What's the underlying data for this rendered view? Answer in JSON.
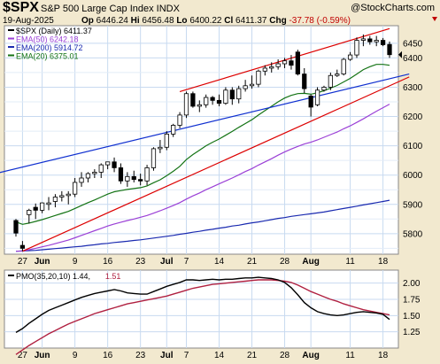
{
  "header": {
    "symbol": "$SPX",
    "name": "S&P 500 Large Cap Index  INDX",
    "brand": "@StockCharts.com",
    "date": "19-Aug-2025",
    "open_label": "Op",
    "open": "6446.24",
    "high_label": "Hi",
    "high": "6456.48",
    "low_label": "Lo",
    "low": "6400.22",
    "close_label": "Cl",
    "close": "6411.37",
    "chg_label": "Chg",
    "chg": "-37.78 (-0.59%)"
  },
  "colors": {
    "background": "#f2e9cf",
    "plot": "#ffffff",
    "grid": "#c8daf0",
    "up": "#000000",
    "down": "#000000",
    "ema50": "#9b40d6",
    "ema200": "#1a2ab0",
    "ema20": "#147314",
    "channel": "#dd0000",
    "trendline": "#1030d0",
    "pmo": "#000000",
    "pmo_signal": "#b02040"
  },
  "chart_data": [
    {
      "type": "candlestick",
      "title": "$SPX (Daily)",
      "y_axis": {
        "ylim": [
          5730,
          6510
        ],
        "ticks": [
          5800,
          5900,
          6000,
          6100,
          6200,
          6300,
          6400,
          6450
        ]
      },
      "x_axis": {
        "ticks": [
          "27",
          "Jun",
          "9",
          "16",
          "23",
          "Jul",
          "7",
          "14",
          "21",
          "28",
          "Aug",
          "11",
          "18"
        ]
      },
      "legend": [
        {
          "label": "$SPX (Daily) 6411.37",
          "color": "#000000"
        },
        {
          "label": "EMA(50) 6242.18",
          "color": "#9b40d6"
        },
        {
          "label": "EMA(200) 5914.72",
          "color": "#1a2ab0"
        },
        {
          "label": "EMA(20) 6375.01",
          "color": "#147314"
        }
      ],
      "candles": [
        {
          "o": 5845,
          "h": 5850,
          "l": 5790,
          "c": 5802
        },
        {
          "o": 5760,
          "h": 5775,
          "l": 5740,
          "c": 5750
        },
        {
          "o": 5865,
          "h": 5885,
          "l": 5835,
          "c": 5880
        },
        {
          "o": 5890,
          "h": 5903,
          "l": 5850,
          "c": 5880
        },
        {
          "o": 5880,
          "h": 5907,
          "l": 5870,
          "c": 5905
        },
        {
          "o": 5900,
          "h": 5925,
          "l": 5880,
          "c": 5905
        },
        {
          "o": 5910,
          "h": 5935,
          "l": 5890,
          "c": 5925
        },
        {
          "o": 5925,
          "h": 5945,
          "l": 5910,
          "c": 5930
        },
        {
          "o": 5930,
          "h": 5945,
          "l": 5900,
          "c": 5935
        },
        {
          "o": 5935,
          "h": 5990,
          "l": 5925,
          "c": 5975
        },
        {
          "o": 5975,
          "h": 6010,
          "l": 5960,
          "c": 5990
        },
        {
          "o": 5990,
          "h": 6010,
          "l": 5975,
          "c": 6005
        },
        {
          "o": 6005,
          "h": 6020,
          "l": 5990,
          "c": 6010
        },
        {
          "o": 6010,
          "h": 6040,
          "l": 5990,
          "c": 6035
        },
        {
          "o": 6035,
          "h": 6045,
          "l": 6020,
          "c": 6045
        },
        {
          "o": 6045,
          "h": 6060,
          "l": 6010,
          "c": 6025
        },
        {
          "o": 6025,
          "h": 6040,
          "l": 5970,
          "c": 5980
        },
        {
          "o": 5980,
          "h": 6010,
          "l": 5960,
          "c": 5995
        },
        {
          "o": 5995,
          "h": 6015,
          "l": 5975,
          "c": 5985
        },
        {
          "o": 5985,
          "h": 6005,
          "l": 5965,
          "c": 5980
        },
        {
          "o": 5980,
          "h": 6035,
          "l": 5965,
          "c": 6025
        },
        {
          "o": 6025,
          "h": 6095,
          "l": 6015,
          "c": 6090
        },
        {
          "o": 6090,
          "h": 6120,
          "l": 6075,
          "c": 6095
        },
        {
          "o": 6095,
          "h": 6150,
          "l": 6085,
          "c": 6140
        },
        {
          "o": 6140,
          "h": 6175,
          "l": 6130,
          "c": 6170
        },
        {
          "o": 6170,
          "h": 6215,
          "l": 6160,
          "c": 6205
        },
        {
          "o": 6205,
          "h": 6285,
          "l": 6195,
          "c": 6278
        },
        {
          "o": 6278,
          "h": 6285,
          "l": 6230,
          "c": 6235
        },
        {
          "o": 6235,
          "h": 6255,
          "l": 6215,
          "c": 6240
        },
        {
          "o": 6240,
          "h": 6275,
          "l": 6230,
          "c": 6265
        },
        {
          "o": 6265,
          "h": 6270,
          "l": 6240,
          "c": 6255
        },
        {
          "o": 6255,
          "h": 6275,
          "l": 6235,
          "c": 6245
        },
        {
          "o": 6245,
          "h": 6300,
          "l": 6240,
          "c": 6290
        },
        {
          "o": 6290,
          "h": 6300,
          "l": 6240,
          "c": 6260
        },
        {
          "o": 6260,
          "h": 6305,
          "l": 6245,
          "c": 6295
        },
        {
          "o": 6295,
          "h": 6325,
          "l": 6285,
          "c": 6305
        },
        {
          "o": 6305,
          "h": 6340,
          "l": 6295,
          "c": 6310
        },
        {
          "o": 6310,
          "h": 6360,
          "l": 6300,
          "c": 6355
        },
        {
          "o": 6355,
          "h": 6375,
          "l": 6340,
          "c": 6365
        },
        {
          "o": 6365,
          "h": 6385,
          "l": 6350,
          "c": 6370
        },
        {
          "o": 6370,
          "h": 6395,
          "l": 6360,
          "c": 6380
        },
        {
          "o": 6380,
          "h": 6400,
          "l": 6365,
          "c": 6390
        },
        {
          "o": 6390,
          "h": 6410,
          "l": 6360,
          "c": 6375
        },
        {
          "o": 6420,
          "h": 6428,
          "l": 6340,
          "c": 6345
        },
        {
          "o": 6345,
          "h": 6365,
          "l": 6280,
          "c": 6295
        },
        {
          "o": 6270,
          "h": 6275,
          "l": 6200,
          "c": 6232
        },
        {
          "o": 6240,
          "h": 6300,
          "l": 6235,
          "c": 6290
        },
        {
          "o": 6290,
          "h": 6305,
          "l": 6285,
          "c": 6300
        },
        {
          "o": 6300,
          "h": 6350,
          "l": 6290,
          "c": 6340
        },
        {
          "o": 6340,
          "h": 6360,
          "l": 6335,
          "c": 6345
        },
        {
          "o": 6345,
          "h": 6400,
          "l": 6340,
          "c": 6395
        },
        {
          "o": 6395,
          "h": 6420,
          "l": 6390,
          "c": 6410
        },
        {
          "o": 6410,
          "h": 6470,
          "l": 6400,
          "c": 6460
        },
        {
          "o": 6460,
          "h": 6480,
          "l": 6440,
          "c": 6465
        },
        {
          "o": 6465,
          "h": 6475,
          "l": 6445,
          "c": 6455
        },
        {
          "o": 6455,
          "h": 6475,
          "l": 6440,
          "c": 6460
        },
        {
          "o": 6460,
          "h": 6468,
          "l": 6440,
          "c": 6445
        },
        {
          "o": 6446,
          "h": 6456,
          "l": 6400,
          "c": 6411
        }
      ],
      "ema20": [
        5840,
        5832,
        5836,
        5842,
        5848,
        5855,
        5862,
        5869,
        5876,
        5886,
        5896,
        5906,
        5915,
        5925,
        5935,
        5943,
        5947,
        5951,
        5954,
        5957,
        5963,
        5974,
        5984,
        5998,
        6013,
        6030,
        6053,
        6070,
        6085,
        6100,
        6112,
        6123,
        6136,
        6149,
        6163,
        6176,
        6189,
        6205,
        6220,
        6235,
        6250,
        6263,
        6272,
        6278,
        6279,
        6276,
        6281,
        6288,
        6297,
        6306,
        6318,
        6330,
        6345,
        6360,
        6370,
        6378,
        6378,
        6375
      ],
      "ema50": [
        5740,
        5741,
        5745,
        5750,
        5755,
        5760,
        5766,
        5772,
        5778,
        5786,
        5794,
        5802,
        5810,
        5818,
        5826,
        5833,
        5839,
        5845,
        5850,
        5856,
        5862,
        5870,
        5878,
        5887,
        5896,
        5906,
        5918,
        5929,
        5939,
        5950,
        5960,
        5970,
        5980,
        5990,
        6001,
        6012,
        6022,
        6034,
        6045,
        6056,
        6068,
        6079,
        6089,
        6098,
        6106,
        6112,
        6120,
        6129,
        6138,
        6147,
        6158,
        6168,
        6180,
        6192,
        6205,
        6218,
        6230,
        6242
      ],
      "ema200": [
        5740,
        5741,
        5742,
        5743,
        5745,
        5747,
        5749,
        5751,
        5753,
        5755,
        5757,
        5760,
        5762,
        5765,
        5767,
        5770,
        5772,
        5774,
        5777,
        5779,
        5782,
        5785,
        5788,
        5791,
        5794,
        5798,
        5801,
        5805,
        5808,
        5812,
        5815,
        5819,
        5822,
        5826,
        5829,
        5833,
        5837,
        5840,
        5844,
        5848,
        5852,
        5855,
        5859,
        5862,
        5865,
        5868,
        5871,
        5874,
        5878,
        5882,
        5886,
        5890,
        5894,
        5898,
        5902,
        5906,
        5910,
        5914
      ],
      "trendline_blue": {
        "start": {
          "i": -5,
          "y": 5995
        },
        "end": {
          "i": 60,
          "y": 6345
        }
      },
      "channel_upper": {
        "start": {
          "i": 25,
          "y": 6285
        },
        "end": {
          "i": 57,
          "y": 6500
        }
      },
      "channel_lower": {
        "start": {
          "i": 1,
          "y": 5740
        },
        "end": {
          "i": 60,
          "y": 6335
        }
      }
    },
    {
      "type": "line",
      "title": "PMO(35,20,10)",
      "legend": [
        {
          "label": "PMO(35,20,10) 1.44,",
          "color": "#000000"
        },
        {
          "label": "1.51",
          "color": "#b02040"
        }
      ],
      "y_axis": {
        "ylim": [
          1.0,
          2.2
        ],
        "ticks": [
          1.25,
          1.5,
          1.75,
          2.0
        ]
      },
      "series": [
        {
          "values": [
            1.24,
            1.3,
            1.38,
            1.45,
            1.52,
            1.58,
            1.62,
            1.66,
            1.7,
            1.74,
            1.78,
            1.81,
            1.84,
            1.86,
            1.88,
            1.9,
            1.88,
            1.85,
            1.84,
            1.83,
            1.83,
            1.87,
            1.91,
            1.95,
            1.98,
            2.01,
            2.05,
            2.05,
            2.04,
            2.05,
            2.06,
            2.05,
            2.06,
            2.06,
            2.07,
            2.08,
            2.08,
            2.09,
            2.08,
            2.07,
            2.05,
            2.01,
            1.93,
            1.82,
            1.7,
            1.62,
            1.56,
            1.53,
            1.51,
            1.5,
            1.51,
            1.53,
            1.55,
            1.56,
            1.55,
            1.54,
            1.52,
            1.44
          ]
        },
        {
          "values": [
            0.9,
            0.97,
            1.04,
            1.1,
            1.16,
            1.22,
            1.27,
            1.32,
            1.37,
            1.41,
            1.45,
            1.49,
            1.53,
            1.56,
            1.59,
            1.62,
            1.65,
            1.68,
            1.7,
            1.72,
            1.74,
            1.76,
            1.78,
            1.8,
            1.83,
            1.86,
            1.89,
            1.92,
            1.94,
            1.96,
            1.98,
            1.99,
            2.0,
            2.01,
            2.02,
            2.03,
            2.04,
            2.05,
            2.05,
            2.05,
            2.04,
            2.03,
            2.01,
            1.97,
            1.92,
            1.87,
            1.83,
            1.79,
            1.75,
            1.72,
            1.68,
            1.65,
            1.62,
            1.59,
            1.57,
            1.55,
            1.53,
            1.51
          ]
        }
      ]
    }
  ]
}
